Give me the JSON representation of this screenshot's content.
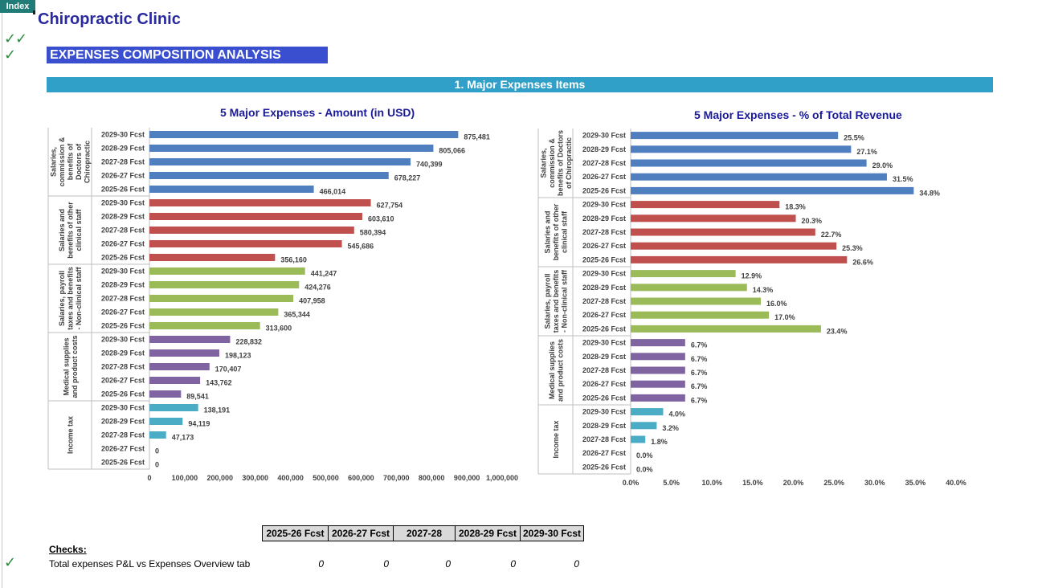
{
  "index_tab": "Index",
  "app_title": "Chiropractic Clinic",
  "section_header": "EXPENSES COMPOSITION ANALYSIS",
  "band_title": "1. Major Expenses Items",
  "colors": {
    "salaries_doctors": "#4f7fbf",
    "salaries_clinical": "#c0504d",
    "salaries_nonclinical": "#9bbb59",
    "medical_supplies": "#8064a2",
    "income_tax": "#4bacc6"
  },
  "chart_data": [
    {
      "type": "bar",
      "orientation": "horizontal",
      "title": "5 Major Expenses - Amount (in USD)",
      "xlim": [
        0,
        1000000
      ],
      "xticks": [
        "0",
        "100,000",
        "200,000",
        "300,000",
        "400,000",
        "500,000",
        "600,000",
        "700,000",
        "800,000",
        "900,000",
        "1,000,000"
      ],
      "groups": [
        {
          "name": "Salaries, commission & benefits of Doctors of Chiropractic",
          "label_lines": [
            "Salaries,",
            "commission &",
            "benefits of",
            "Doctors of",
            "Chiropractic"
          ],
          "color": "#4f7fbf",
          "categories": [
            "2029-30 Fcst",
            "2028-29 Fcst",
            "2027-28 Fcst",
            "2026-27 Fcst",
            "2025-26 Fcst"
          ],
          "values": [
            875481,
            805066,
            740399,
            678227,
            466014
          ],
          "labels": [
            "875,481",
            "805,066",
            "740,399",
            "678,227",
            "466,014"
          ]
        },
        {
          "name": "Salaries and benefits of other clinical staff",
          "label_lines": [
            "Salaries and",
            "benefits of other",
            "clinical staff"
          ],
          "color": "#c0504d",
          "categories": [
            "2029-30 Fcst",
            "2028-29 Fcst",
            "2027-28 Fcst",
            "2026-27 Fcst",
            "2025-26 Fcst"
          ],
          "values": [
            627754,
            603610,
            580394,
            545686,
            356160
          ],
          "labels": [
            "627,754",
            "603,610",
            "580,394",
            "545,686",
            "356,160"
          ]
        },
        {
          "name": "Salaries, payroll taxes and benefits - Non-clinical staff",
          "label_lines": [
            "Salaries, payroll",
            "taxes and benefits",
            "- Non-clinical staff"
          ],
          "color": "#9bbb59",
          "categories": [
            "2029-30 Fcst",
            "2028-29 Fcst",
            "2027-28 Fcst",
            "2026-27 Fcst",
            "2025-26 Fcst"
          ],
          "values": [
            441247,
            424276,
            407958,
            365344,
            313600
          ],
          "labels": [
            "441,247",
            "424,276",
            "407,958",
            "365,344",
            "313,600"
          ]
        },
        {
          "name": "Medical supplies and product costs",
          "label_lines": [
            "Medical supplies",
            "and product costs"
          ],
          "color": "#8064a2",
          "categories": [
            "2029-30 Fcst",
            "2028-29 Fcst",
            "2027-28 Fcst",
            "2026-27 Fcst",
            "2025-26 Fcst"
          ],
          "values": [
            228832,
            198123,
            170407,
            143762,
            89541
          ],
          "labels": [
            "228,832",
            "198,123",
            "170,407",
            "143,762",
            "89,541"
          ]
        },
        {
          "name": "Income tax",
          "label_lines": [
            "Income tax"
          ],
          "color": "#4bacc6",
          "categories": [
            "2029-30 Fcst",
            "2028-29 Fcst",
            "2027-28 Fcst",
            "2026-27 Fcst",
            "2025-26 Fcst"
          ],
          "values": [
            138191,
            94119,
            47173,
            0,
            0
          ],
          "labels": [
            "138,191",
            "94,119",
            "47,173",
            "0",
            "0"
          ]
        }
      ]
    },
    {
      "type": "bar",
      "orientation": "horizontal",
      "title": "5 Major Expenses - % of Total Revenue",
      "xlim": [
        0,
        40
      ],
      "xticks": [
        "0.0%",
        "5.0%",
        "10.0%",
        "15.0%",
        "20.0%",
        "25.0%",
        "30.0%",
        "35.0%",
        "40.0%"
      ],
      "groups": [
        {
          "name": "Salaries, commission & benefits of Doctors of Chiropractic",
          "label_lines": [
            "Salaries,",
            "commission &",
            "benefits of Doctors",
            "of Chiropractic"
          ],
          "color": "#4f7fbf",
          "categories": [
            "2029-30 Fcst",
            "2028-29 Fcst",
            "2027-28 Fcst",
            "2026-27 Fcst",
            "2025-26 Fcst"
          ],
          "values": [
            25.5,
            27.1,
            29.0,
            31.5,
            34.8
          ],
          "labels": [
            "25.5%",
            "27.1%",
            "29.0%",
            "31.5%",
            "34.8%"
          ]
        },
        {
          "name": "Salaries and benefits of other clinical staff",
          "label_lines": [
            "Salaries and",
            "benefits of other",
            "clinical staff"
          ],
          "color": "#c0504d",
          "categories": [
            "2029-30 Fcst",
            "2028-29 Fcst",
            "2027-28 Fcst",
            "2026-27 Fcst",
            "2025-26 Fcst"
          ],
          "values": [
            18.3,
            20.3,
            22.7,
            25.3,
            26.6
          ],
          "labels": [
            "18.3%",
            "20.3%",
            "22.7%",
            "25.3%",
            "26.6%"
          ]
        },
        {
          "name": "Salaries, payroll taxes and benefits - Non-clinical staff",
          "label_lines": [
            "Salaries, payroll",
            "taxes and benefits",
            "- Non-clinical staff"
          ],
          "color": "#9bbb59",
          "categories": [
            "2029-30 Fcst",
            "2028-29 Fcst",
            "2027-28 Fcst",
            "2026-27 Fcst",
            "2025-26 Fcst"
          ],
          "values": [
            12.9,
            14.3,
            16.0,
            17.0,
            23.4
          ],
          "labels": [
            "12.9%",
            "14.3%",
            "16.0%",
            "17.0%",
            "23.4%"
          ]
        },
        {
          "name": "Medical supplies and product costs",
          "label_lines": [
            "Medical supplies",
            "and product costs"
          ],
          "color": "#8064a2",
          "categories": [
            "2029-30 Fcst",
            "2028-29 Fcst",
            "2027-28 Fcst",
            "2026-27 Fcst",
            "2025-26 Fcst"
          ],
          "values": [
            6.7,
            6.7,
            6.7,
            6.7,
            6.7
          ],
          "labels": [
            "6.7%",
            "6.7%",
            "6.7%",
            "6.7%",
            "6.7%"
          ]
        },
        {
          "name": "Income tax",
          "label_lines": [
            "Income tax"
          ],
          "color": "#4bacc6",
          "categories": [
            "2029-30 Fcst",
            "2028-29 Fcst",
            "2027-28 Fcst",
            "2026-27 Fcst",
            "2025-26 Fcst"
          ],
          "values": [
            4.0,
            3.2,
            1.8,
            0.0,
            0.0
          ],
          "labels": [
            "4.0%",
            "3.2%",
            "1.8%",
            "0.0%",
            "0.0%"
          ]
        }
      ]
    }
  ],
  "checks": {
    "headers": [
      "2025-26 Fcst",
      "2026-27 Fcst",
      "2027-28",
      "2028-29 Fcst",
      "2029-30 Fcst"
    ],
    "label": "Checks:",
    "row_label": "Total expenses P&L vs Expenses Overview tab",
    "values": [
      "0",
      "0",
      "0",
      "0",
      "0"
    ]
  }
}
